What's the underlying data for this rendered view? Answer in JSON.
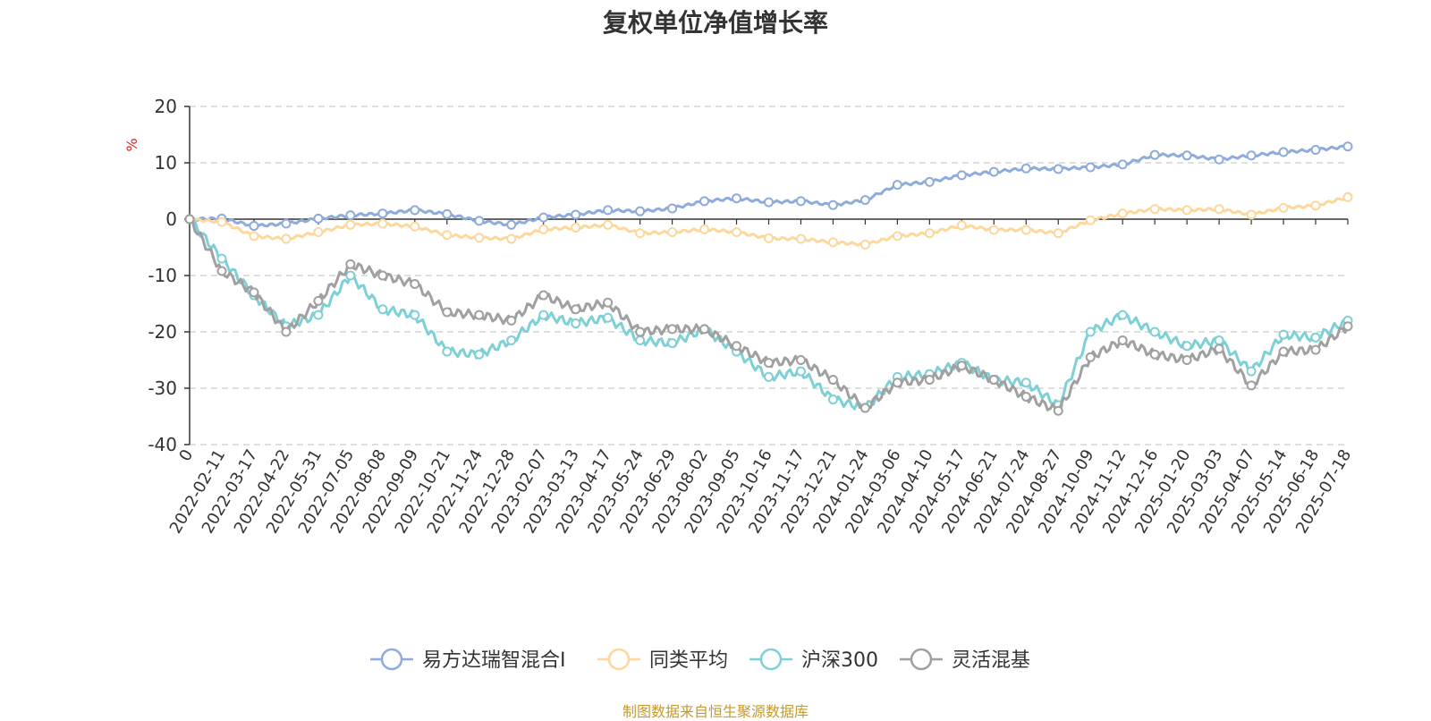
{
  "chart_data": {
    "type": "line",
    "title": "复权单位净值增长率",
    "ylabel": "%",
    "ylim": [
      -40,
      20
    ],
    "yticks": [
      20,
      10,
      0,
      -10,
      -20,
      -30,
      -40
    ],
    "grid": "horizontal dashed",
    "legend_position": "bottom",
    "categories": [
      "0",
      "2022-02-11",
      "2022-03-17",
      "2022-04-22",
      "2022-05-31",
      "2022-07-05",
      "2022-08-08",
      "2022-09-09",
      "2022-10-21",
      "2022-11-24",
      "2022-12-28",
      "2023-02-07",
      "2023-03-13",
      "2023-04-17",
      "2023-05-24",
      "2023-06-29",
      "2023-08-02",
      "2023-09-05",
      "2023-10-16",
      "2023-11-17",
      "2023-12-21",
      "2024-01-24",
      "2024-03-06",
      "2024-04-10",
      "2024-05-17",
      "2024-06-21",
      "2024-07-24",
      "2024-08-27",
      "2024-10-09",
      "2024-11-12",
      "2024-12-16",
      "2025-01-20",
      "2025-03-03",
      "2025-04-07",
      "2025-05-14",
      "2025-06-18",
      "2025-07-18"
    ],
    "series": [
      {
        "name": "易方达瑞智混合I",
        "color": "#8fabdc",
        "values": [
          0,
          0.1,
          -1.2,
          -0.8,
          0.1,
          0.7,
          1.0,
          1.6,
          0.9,
          -0.3,
          -1.0,
          0.3,
          0.8,
          1.6,
          1.4,
          1.9,
          3.2,
          3.7,
          3.0,
          3.2,
          2.5,
          3.4,
          6.1,
          6.6,
          7.8,
          8.4,
          9.0,
          8.9,
          9.2,
          9.7,
          11.4,
          11.3,
          10.6,
          11.3,
          11.9,
          12.3,
          12.9
        ]
      },
      {
        "name": "同类平均",
        "color": "#fdd79b",
        "values": [
          0,
          -0.5,
          -3.0,
          -3.5,
          -2.3,
          -1.0,
          -0.8,
          -1.3,
          -2.8,
          -3.3,
          -3.5,
          -1.8,
          -1.5,
          -1.0,
          -2.5,
          -2.3,
          -1.8,
          -2.3,
          -3.4,
          -3.5,
          -4.1,
          -4.5,
          -3.0,
          -2.5,
          -1.1,
          -1.9,
          -1.9,
          -2.5,
          -0.2,
          1.0,
          1.8,
          1.6,
          1.8,
          0.8,
          2.0,
          2.4,
          3.9
        ]
      },
      {
        "name": "沪深300",
        "color": "#7dd0d6",
        "values": [
          0,
          -7,
          -13.5,
          -19,
          -17,
          -10,
          -16,
          -17,
          -23.5,
          -24,
          -21.5,
          -17,
          -18.5,
          -17.5,
          -21.5,
          -22,
          -19.5,
          -23.5,
          -28,
          -27,
          -32,
          -33.5,
          -28,
          -27.5,
          -25.5,
          -28.5,
          -29,
          -33,
          -20,
          -17,
          -20,
          -22.5,
          -21.5,
          -27,
          -20.5,
          -21,
          -18
        ]
      },
      {
        "name": "灵活混基",
        "color": "#a0a0a0",
        "values": [
          0,
          -9.2,
          -13,
          -20,
          -14.5,
          -8,
          -10,
          -11.5,
          -16.5,
          -17,
          -18,
          -13.5,
          -16,
          -14.8,
          -20,
          -19.5,
          -19.5,
          -22.5,
          -25.5,
          -25,
          -28.5,
          -33.5,
          -29,
          -28.5,
          -26,
          -28.5,
          -31.5,
          -34,
          -24.5,
          -21.5,
          -24,
          -25,
          -23,
          -29.5,
          -23.5,
          -23.2,
          -19
        ]
      }
    ]
  },
  "source_note": "制图数据来自恒生聚源数据库"
}
